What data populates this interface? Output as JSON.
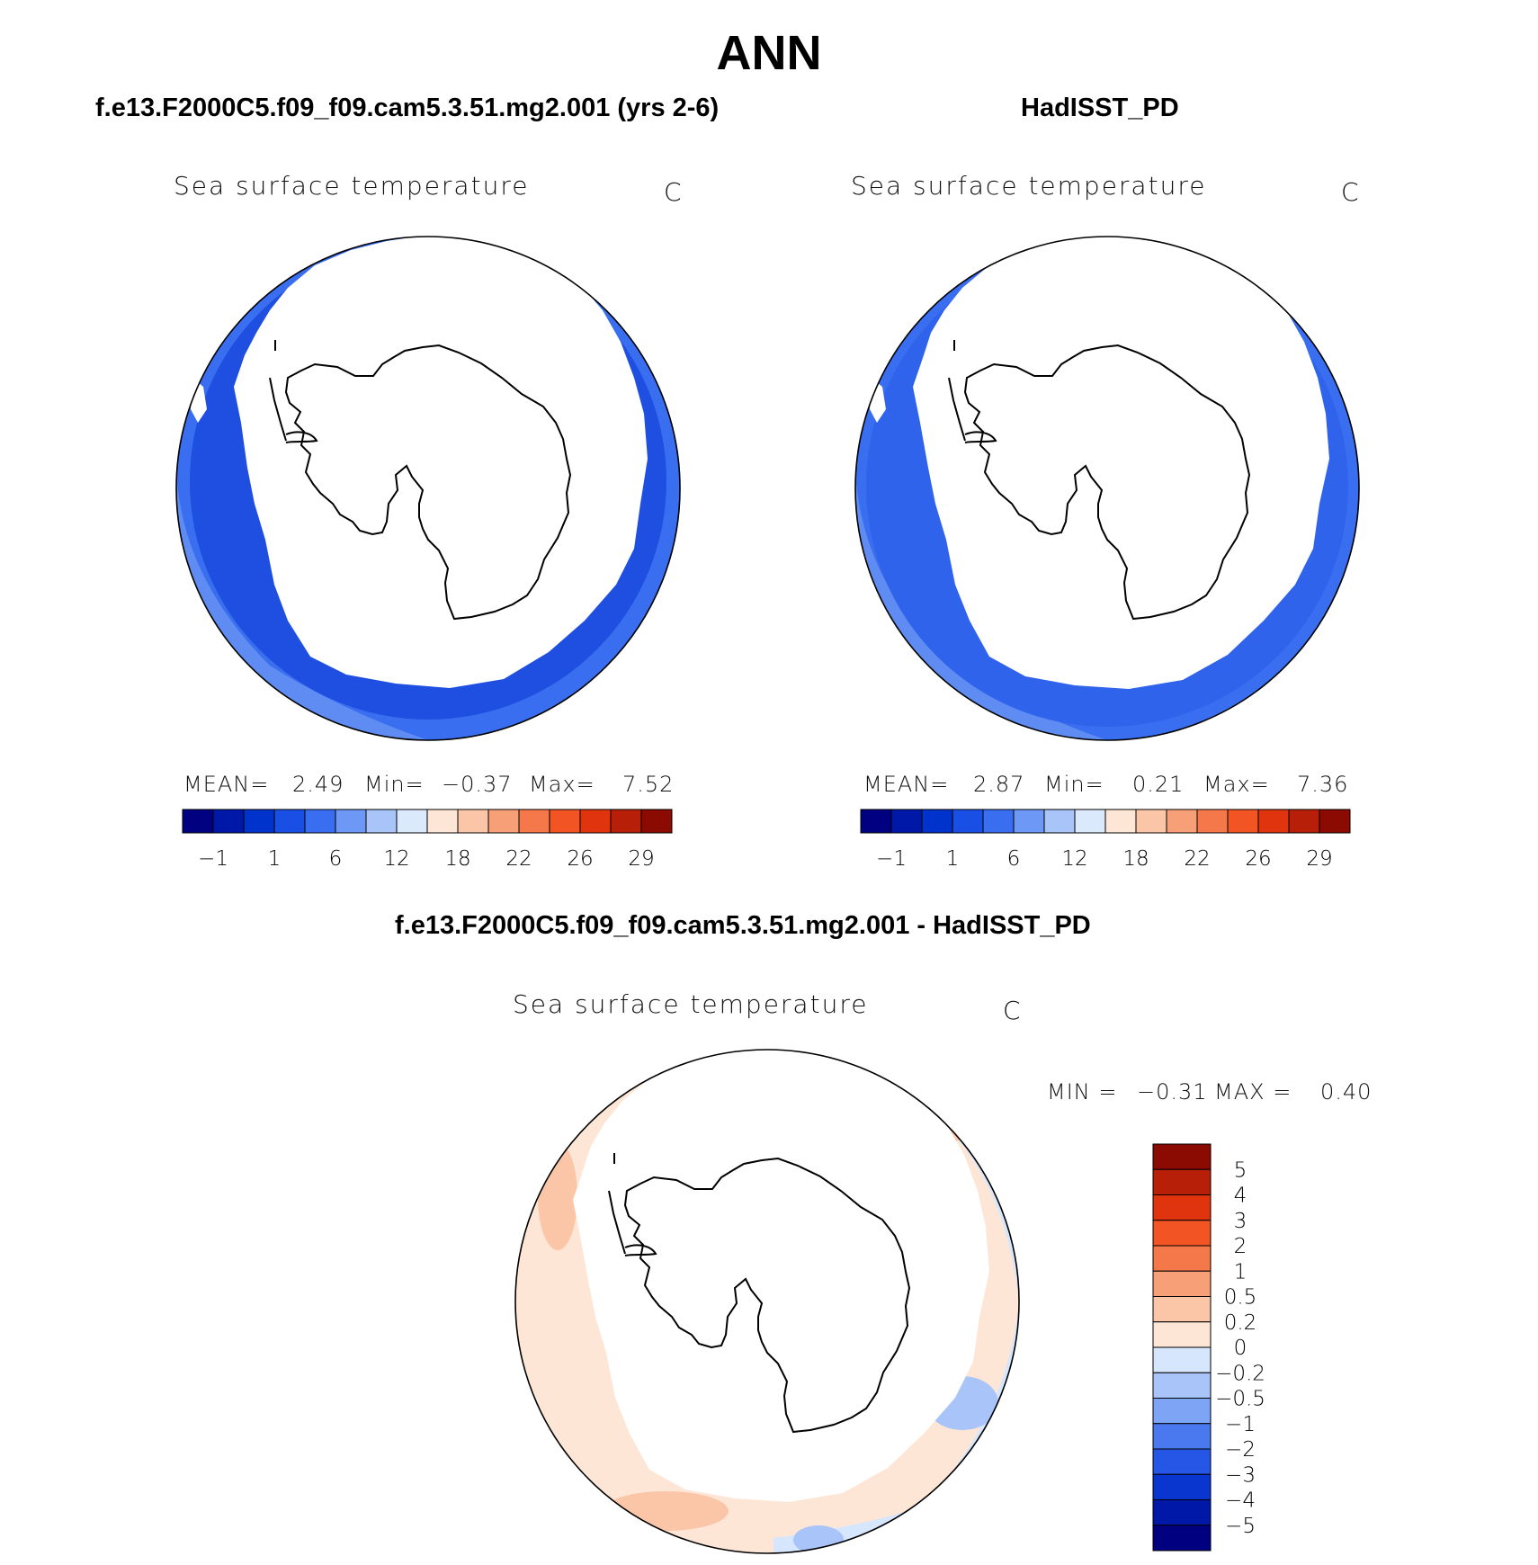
{
  "season": "ANN",
  "colors": {
    "land": "#ffffff",
    "sst_levels": [
      "#000080",
      "#0018a8",
      "#0033cc",
      "#1a4fe6",
      "#3a6ef0",
      "#6e98f5",
      "#a9c4f8",
      "#dbe9fd",
      "#fde6d6",
      "#fbc6a8",
      "#f7a078",
      "#f5784a",
      "#f25424",
      "#e0340f",
      "#b81f08",
      "#8b0a02"
    ],
    "diff_levels_top_to_bottom": [
      "#8b0a02",
      "#b81f08",
      "#e0340f",
      "#f25424",
      "#f5784a",
      "#f7a078",
      "#fbc6a8",
      "#fde6d6",
      "#d6e6fd",
      "#a9c4f8",
      "#7ea4f5",
      "#4a78ee",
      "#2656e6",
      "#0a36d0",
      "#0018a8",
      "#000080"
    ]
  },
  "panels": [
    {
      "id": "model",
      "header": "f.e13.F2000C5.f09_f09.cam5.3.51.mg2.001 (yrs 2-6)",
      "variable": "Sea surface temperature",
      "units": "C",
      "stats": {
        "mean_label": "MEAN=",
        "mean": "2.49",
        "min_label": "Min=",
        "min": "−0.37",
        "max_label": "Max=",
        "max": "7.52"
      },
      "colorbar_ticks": [
        "−1",
        "1",
        "6",
        "12",
        "18",
        "22",
        "26",
        "29"
      ]
    },
    {
      "id": "obs",
      "header": "HadISST_PD",
      "variable": "Sea surface temperature",
      "units": "C",
      "stats": {
        "mean_label": "MEAN=",
        "mean": "2.87",
        "min_label": "Min=",
        "min": "0.21",
        "max_label": "Max=",
        "max": "7.36"
      },
      "colorbar_ticks": [
        "−1",
        "1",
        "6",
        "12",
        "18",
        "22",
        "26",
        "29"
      ]
    }
  ],
  "difference": {
    "header": "f.e13.F2000C5.f09_f09.cam5.3.51.mg2.001 - HadISST_PD",
    "variable": "Sea surface temperature",
    "units": "C",
    "stats": {
      "min_label": "MIN =",
      "min": "−0.31",
      "max_label": "MAX =",
      "max": "0.40"
    },
    "colorbar_ticks": [
      "5",
      "4",
      "3",
      "2",
      "1",
      "0.5",
      "0.2",
      "0",
      "−0.2",
      "−0.5",
      "−1",
      "−2",
      "−3",
      "−4",
      "−5"
    ]
  }
}
